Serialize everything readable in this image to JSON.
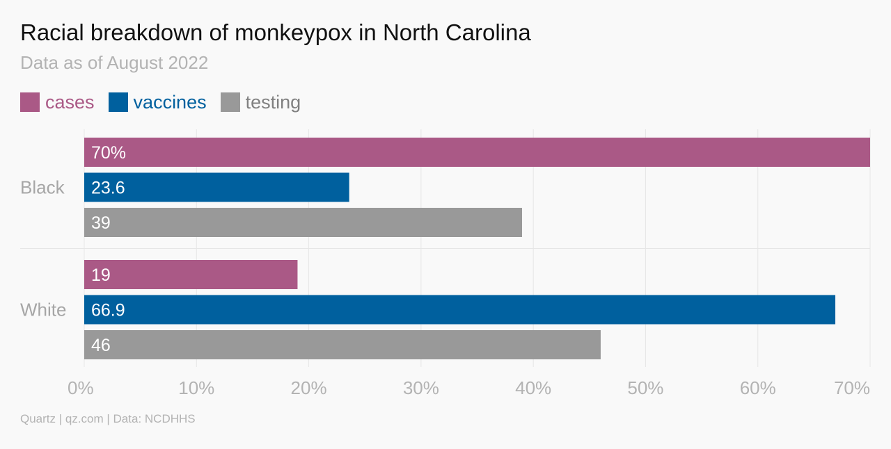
{
  "chart_data": {
    "type": "bar",
    "orientation": "horizontal",
    "title": "Racial breakdown of monkeypox in North Carolina",
    "subtitle": "Data as of August 2022",
    "categories": [
      "Black",
      "White"
    ],
    "series": [
      {
        "name": "cases",
        "color": "#aa5986",
        "values": [
          70,
          19
        ],
        "labels": [
          "70%",
          "19"
        ]
      },
      {
        "name": "vaccines",
        "color": "#00609e",
        "values": [
          23.6,
          66.9
        ],
        "labels": [
          "23.6",
          "66.9"
        ]
      },
      {
        "name": "testing",
        "color": "#999999",
        "values": [
          39,
          46
        ],
        "labels": [
          "39",
          "46"
        ]
      }
    ],
    "xlim": [
      0,
      70
    ],
    "xticks": [
      0,
      10,
      20,
      30,
      40,
      50,
      60,
      70
    ],
    "xtick_labels": [
      "0%",
      "10%",
      "20%",
      "30%",
      "40%",
      "50%",
      "60%",
      "70%"
    ],
    "grid": true,
    "legend_position": "top-left",
    "source": "Quartz | qz.com | Data: NCDHHS"
  }
}
